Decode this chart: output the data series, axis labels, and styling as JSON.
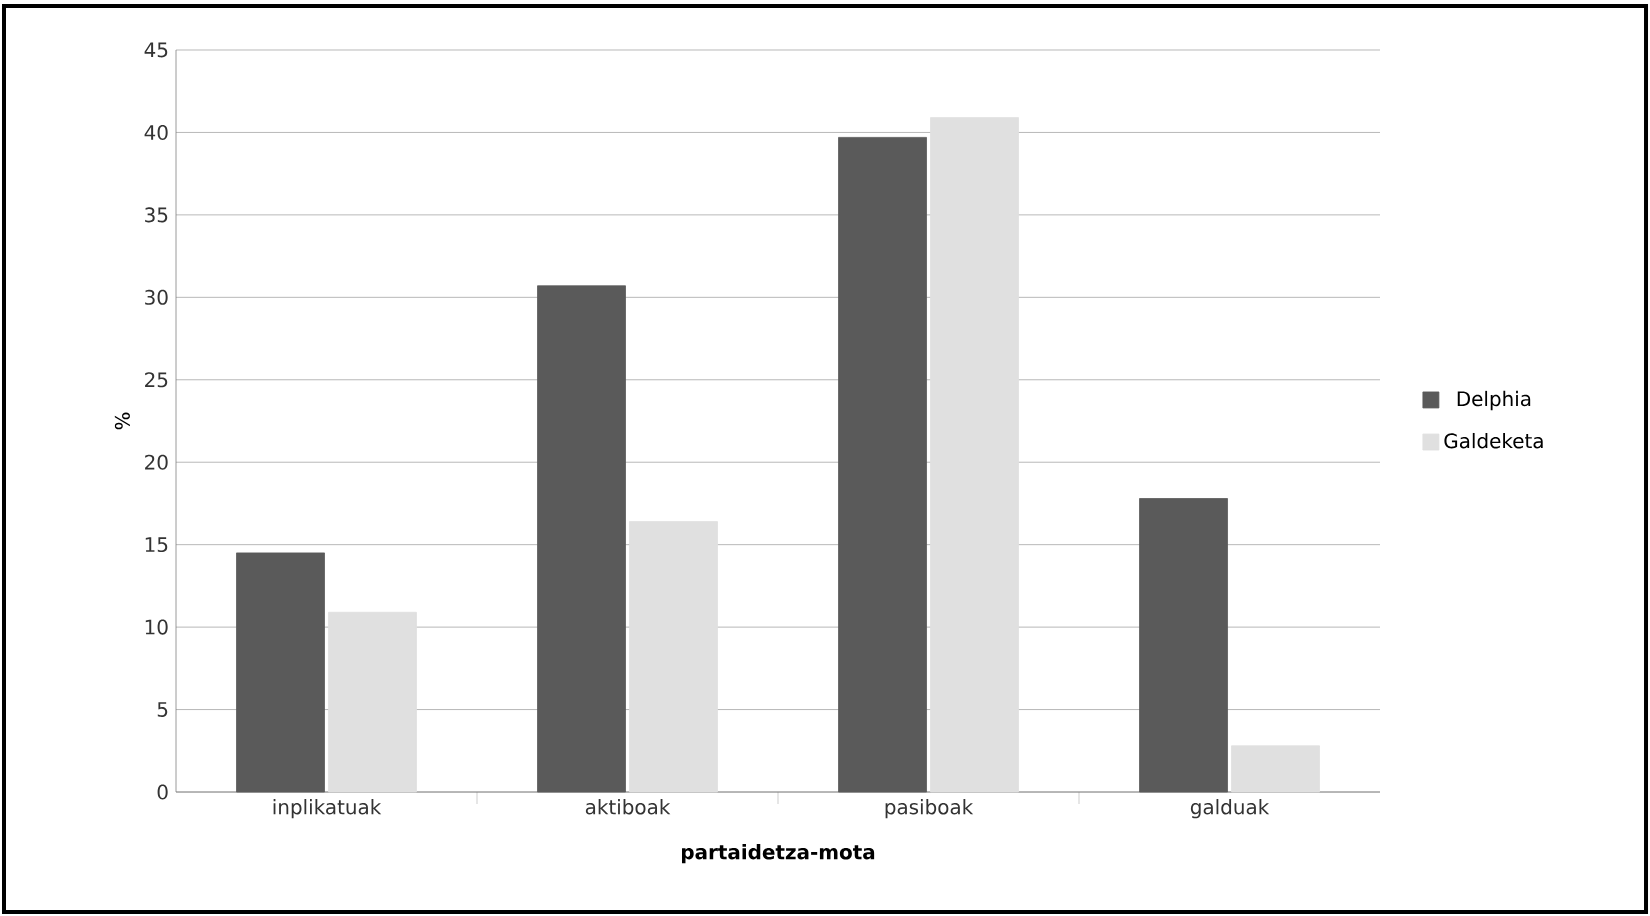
{
  "chart_data": {
    "type": "bar",
    "xlabel": "partaidetza-mota",
    "ylabel": "%",
    "categories": [
      "inplikatuak",
      "aktiboak",
      "pasiboak",
      "galduak"
    ],
    "series": [
      {
        "name": "Delphia",
        "color": "#5a5a5a",
        "values": [
          14.5,
          30.7,
          39.7,
          17.8
        ]
      },
      {
        "name": "Galdeketa",
        "color": "#e0e0e0",
        "values": [
          10.9,
          16.4,
          40.9,
          2.8
        ]
      }
    ],
    "ylim": [
      0,
      45
    ],
    "yticks": [
      0,
      5,
      10,
      15,
      20,
      25,
      30,
      35,
      40,
      45
    ],
    "grid": "y",
    "legend": "right"
  }
}
